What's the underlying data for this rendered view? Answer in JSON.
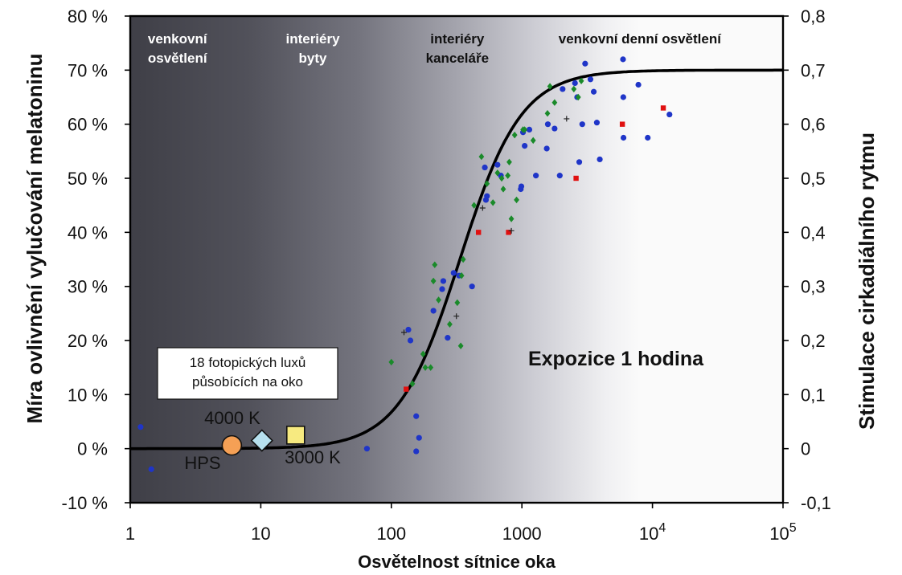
{
  "chart_data": {
    "type": "scatter",
    "title": "Expozice 1 hodina",
    "xlabel": "Osvětelnost sítnice oka",
    "ylabel_left": "Míra ovlivnění vylučování melatoninu",
    "ylabel_right": "Stimulace cirkadiálního rytmu",
    "x_scale": "log",
    "xlim": [
      1,
      100000
    ],
    "ylim": [
      -10,
      80
    ],
    "x_ticks": [
      {
        "value": 1,
        "label": "1"
      },
      {
        "value": 10,
        "label": "10"
      },
      {
        "value": 100,
        "label": "100"
      },
      {
        "value": 1000,
        "label": "1000"
      },
      {
        "value": 10000,
        "base": "10",
        "exp": "4"
      },
      {
        "value": 100000,
        "base": "10",
        "exp": "5"
      }
    ],
    "y_ticks_left": [
      {
        "value": 80,
        "label": "80 %"
      },
      {
        "value": 70,
        "label": "70 %"
      },
      {
        "value": 60,
        "label": "60 %"
      },
      {
        "value": 50,
        "label": "50 %"
      },
      {
        "value": 40,
        "label": "40 %"
      },
      {
        "value": 30,
        "label": "30 %"
      },
      {
        "value": 20,
        "label": "20 %"
      },
      {
        "value": 10,
        "label": "10 %"
      },
      {
        "value": 0,
        "label": "0 %"
      },
      {
        "value": -10,
        "label": "-10 %"
      }
    ],
    "y_ticks_right": [
      {
        "value": 80,
        "label": "0,8"
      },
      {
        "value": 70,
        "label": "0,7"
      },
      {
        "value": 60,
        "label": "0,6"
      },
      {
        "value": 50,
        "label": "0,5"
      },
      {
        "value": 40,
        "label": "0,4"
      },
      {
        "value": 30,
        "label": "0,3"
      },
      {
        "value": 20,
        "label": "0,2"
      },
      {
        "value": 10,
        "label": "0,1"
      },
      {
        "value": 0,
        "label": "0"
      },
      {
        "value": -10,
        "label": "-0,1"
      }
    ],
    "regions": [
      {
        "lines": [
          "venkovní",
          "osvětlení"
        ],
        "x": 2.3,
        "color": "#ffffff"
      },
      {
        "lines": [
          "interiéry",
          "byty"
        ],
        "x": 25,
        "color": "#ffffff"
      },
      {
        "lines": [
          "interiéry",
          "kanceláře"
        ],
        "x": 320,
        "color": "#111111"
      },
      {
        "lines": [
          "venkovní denní osvětlení"
        ],
        "x": 8000,
        "color": "#111111"
      }
    ],
    "curve": {
      "name": "model",
      "color": "#000000",
      "max": 70,
      "ec50": 335,
      "hill": 1.85
    },
    "series": [
      {
        "name": "blue-circles",
        "marker": "circle",
        "color": "#1f35c8",
        "points": [
          [
            1.2,
            4
          ],
          [
            1.45,
            -3.8
          ],
          [
            65,
            0
          ],
          [
            155,
            -0.5
          ],
          [
            163,
            2
          ],
          [
            135,
            22
          ],
          [
            140,
            20
          ],
          [
            155,
            6
          ],
          [
            210,
            25.5
          ],
          [
            245,
            29.5
          ],
          [
            250,
            31
          ],
          [
            270,
            20.5
          ],
          [
            300,
            32.5
          ],
          [
            330,
            32
          ],
          [
            415,
            30
          ],
          [
            520,
            52
          ],
          [
            530,
            46
          ],
          [
            540,
            46.7
          ],
          [
            650,
            52.5
          ],
          [
            690,
            50.5
          ],
          [
            980,
            48
          ],
          [
            990,
            48.5
          ],
          [
            1020,
            58.5
          ],
          [
            1050,
            56
          ],
          [
            1140,
            59
          ],
          [
            1280,
            50.5
          ],
          [
            1550,
            55.5
          ],
          [
            1580,
            60
          ],
          [
            1780,
            59.2
          ],
          [
            1950,
            50.5
          ],
          [
            2050,
            66.5
          ],
          [
            2550,
            67.6
          ],
          [
            2650,
            65
          ],
          [
            2750,
            53
          ],
          [
            2900,
            60
          ],
          [
            3050,
            71.2
          ],
          [
            3350,
            68.3
          ],
          [
            3550,
            66
          ],
          [
            3750,
            60.3
          ],
          [
            3950,
            53.5
          ],
          [
            5950,
            72
          ],
          [
            5980,
            65
          ],
          [
            6000,
            57.5
          ],
          [
            7800,
            67.3
          ],
          [
            9200,
            57.5
          ],
          [
            13500,
            61.8
          ]
        ]
      },
      {
        "name": "green-diamonds",
        "marker": "diamond",
        "color": "#1a8a2a",
        "points": [
          [
            100,
            16
          ],
          [
            145,
            12
          ],
          [
            175,
            17.5
          ],
          [
            182,
            15
          ],
          [
            200,
            15
          ],
          [
            210,
            31
          ],
          [
            215,
            34
          ],
          [
            230,
            27.5
          ],
          [
            280,
            23
          ],
          [
            320,
            27
          ],
          [
            340,
            19
          ],
          [
            345,
            32
          ],
          [
            355,
            35
          ],
          [
            430,
            45
          ],
          [
            490,
            54
          ],
          [
            540,
            49
          ],
          [
            600,
            45.5
          ],
          [
            650,
            51
          ],
          [
            700,
            50
          ],
          [
            720,
            48
          ],
          [
            780,
            50.5
          ],
          [
            800,
            53
          ],
          [
            830,
            42.5
          ],
          [
            880,
            58
          ],
          [
            910,
            46
          ],
          [
            1020,
            59
          ],
          [
            1050,
            59
          ],
          [
            1220,
            57
          ],
          [
            1570,
            62
          ],
          [
            1640,
            67
          ],
          [
            1780,
            64
          ],
          [
            2500,
            66.5
          ],
          [
            2700,
            65
          ],
          [
            2850,
            68
          ]
        ]
      },
      {
        "name": "red-squares",
        "marker": "square",
        "color": "#e01010",
        "points": [
          [
            130,
            11
          ],
          [
            465,
            40
          ],
          [
            790,
            40
          ],
          [
            2600,
            50
          ],
          [
            5880,
            60
          ],
          [
            12100,
            63
          ]
        ]
      },
      {
        "name": "black-crosses",
        "marker": "cross",
        "color": "#222222",
        "points": [
          [
            125,
            21.5
          ],
          [
            500,
            44.5
          ],
          [
            830,
            40.3
          ],
          [
            315,
            24.5
          ],
          [
            2200,
            61
          ]
        ]
      }
    ],
    "annotation_box": {
      "lines": [
        "18 fotopických luxů",
        "působících na oko"
      ]
    },
    "markers": [
      {
        "name": "hps",
        "label": "HPS",
        "label2": "4000 K",
        "x": 6.0,
        "y": 0.6,
        "shape": "circle",
        "color": "#f5a055"
      },
      {
        "name": "4000k",
        "x": 10.2,
        "y": 1.5,
        "shape": "diamond",
        "color": "#b6e0ee"
      },
      {
        "name": "3000k",
        "label": "3000 K",
        "x": 18.5,
        "y": 2.5,
        "shape": "square",
        "color": "#f7ea80"
      }
    ],
    "exposure_label": "Expozice 1 hodina"
  }
}
